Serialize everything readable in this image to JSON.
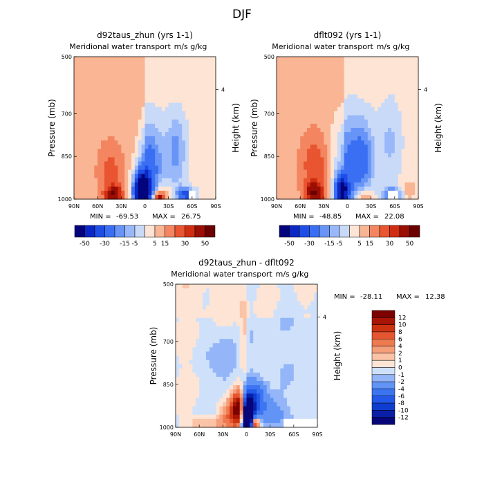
{
  "figure": {
    "title": "DJF"
  },
  "chart_data": [
    {
      "type": "heatmap",
      "title": "d92taus_zhun (yrs 1-1)",
      "subtitle_left": "Meridional water transport",
      "subtitle_right": "m/s g/kg",
      "xlabel": "",
      "ylabel": "Pressure (mb)",
      "y2label": "Height (km)",
      "x_ticks": [
        "90N",
        "60N",
        "30N",
        "0",
        "30S",
        "60S",
        "90S"
      ],
      "x_range": [
        90,
        -90
      ],
      "y_ticks": [
        500,
        700,
        850,
        1000
      ],
      "y_range": [
        500,
        1000
      ],
      "y2_ticks": [
        4
      ],
      "stats": {
        "min_label": "MIN =",
        "min": "-69.53",
        "max_label": "MAX =",
        "max": "26.75"
      },
      "colorbar_levels": [
        "-50",
        "-30",
        "-15",
        "-5",
        "5",
        "15",
        "30",
        "50"
      ],
      "features": [
        {
          "lat": 0,
          "p": 985,
          "value": -69.53
        },
        {
          "lat": 38,
          "p": 975,
          "value": 18
        },
        {
          "lat": -20,
          "p": 990,
          "value": 26.75
        },
        {
          "lat": -55,
          "p": 975,
          "value": -30
        }
      ]
    },
    {
      "type": "heatmap",
      "title": "dflt092 (yrs 1-1)",
      "subtitle_left": "Meridional water transport",
      "subtitle_right": "m/s g/kg",
      "xlabel": "",
      "ylabel": "Pressure (mb)",
      "y2label": "Height (km)",
      "x_ticks": [
        "90N",
        "60N",
        "30N",
        "0",
        "30S",
        "60S",
        "90S"
      ],
      "x_range": [
        90,
        -90
      ],
      "y_ticks": [
        500,
        700,
        850,
        1000
      ],
      "y_range": [
        500,
        1000
      ],
      "y2_ticks": [
        4
      ],
      "stats": {
        "min_label": "MIN =",
        "min": "-48.85",
        "max_label": "MAX =",
        "max": "22.08"
      },
      "colorbar_levels": [
        "-50",
        "-30",
        "-15",
        "-5",
        "5",
        "15",
        "30",
        "50"
      ],
      "features": [
        {
          "lat": 8,
          "p": 985,
          "value": -48.85
        },
        {
          "lat": 38,
          "p": 975,
          "value": 22.08
        },
        {
          "lat": -20,
          "p": 990,
          "value": 15
        },
        {
          "lat": -55,
          "p": 975,
          "value": -25
        }
      ]
    },
    {
      "type": "heatmap",
      "title": "d92taus_zhun - dflt092",
      "subtitle_left": "Meridional water transport",
      "subtitle_right": "m/s g/kg",
      "xlabel": "",
      "ylabel": "Pressure (mb)",
      "y2label": "Height (km)",
      "x_ticks": [
        "90N",
        "60N",
        "30N",
        "0",
        "30S",
        "60S",
        "90S"
      ],
      "x_range": [
        90,
        -90
      ],
      "y_ticks": [
        500,
        700,
        850,
        1000
      ],
      "y_range": [
        500,
        1000
      ],
      "y2_ticks": [
        4
      ],
      "stats": {
        "min_label": "MIN =",
        "min": "-28.11",
        "max_label": "MAX =",
        "max": "12.38"
      },
      "colorbar_levels": [
        "12",
        "10",
        "8",
        "6",
        "4",
        "2",
        "1",
        "0",
        "-1",
        "-2",
        "-4",
        "-6",
        "-8",
        "-10",
        "-12"
      ],
      "features": [
        {
          "lat": 0,
          "p": 985,
          "value": -28.11
        },
        {
          "lat": 10,
          "p": 920,
          "value": 12.38
        },
        {
          "lat": -5,
          "p": 990,
          "value": 12
        },
        {
          "lat": 40,
          "p": 990,
          "value": 2
        }
      ]
    }
  ],
  "colors": {
    "diverging_13": [
      "#04047c",
      "#0b28c4",
      "#1e4ee6",
      "#3a6ff3",
      "#6794f6",
      "#99b8fa",
      "#c8daf8",
      "#fde4d4",
      "#f9b594",
      "#f38660",
      "#e85530",
      "#cf2d12",
      "#9a0e04",
      "#6b0000"
    ],
    "diverging_16": [
      "#06067a",
      "#0a1fa8",
      "#0e3ed0",
      "#2358e8",
      "#3d74f2",
      "#6294f6",
      "#94b6f9",
      "#cfe1fa",
      "#fde4d4",
      "#fbc3a7",
      "#f59f7a",
      "#ef7a50",
      "#e45530",
      "#cc3210",
      "#a81505",
      "#7c0202"
    ],
    "missing": "#ffffff"
  }
}
